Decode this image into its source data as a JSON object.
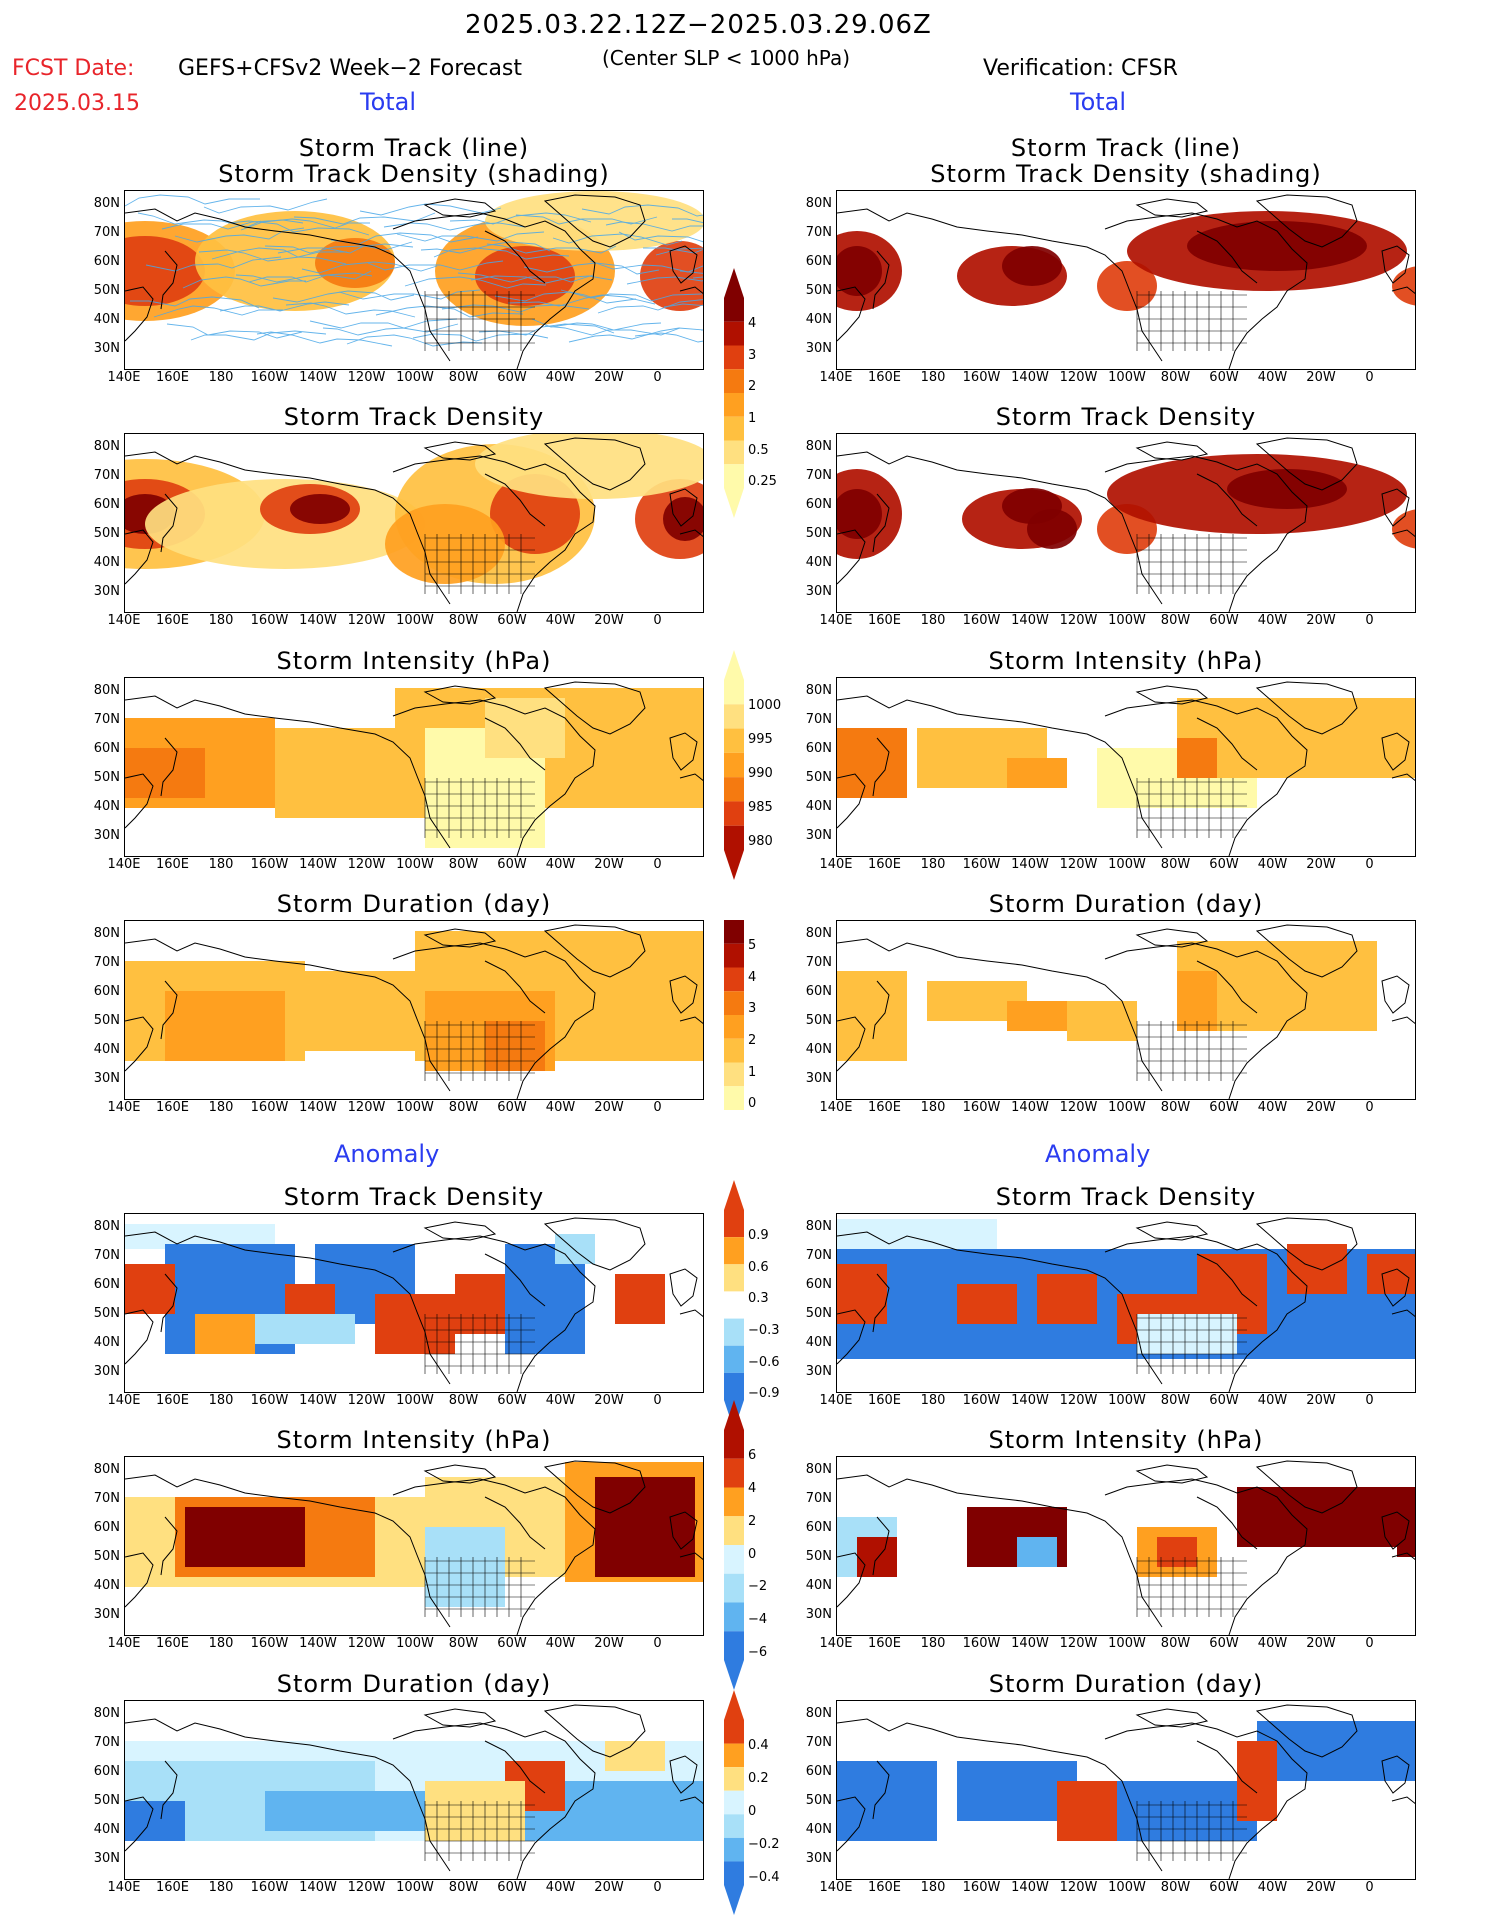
{
  "header": {
    "date_range": "2025.03.22.12Z−2025.03.29.06Z",
    "fcst_label": "FCST Date:",
    "fcst_date": "2025.03.15",
    "model_label": "GEFS+CFSv2 Week−2 Forecast",
    "threshold": "(Center SLP < 1000 hPa)",
    "verification": "Verification: CFSR"
  },
  "sections": {
    "total_left": "Total",
    "total_right": "Total",
    "anomaly_left": "Anomaly",
    "anomaly_right": "Anomaly"
  },
  "panel_titles": {
    "track_line": "Storm Track (line)",
    "track_density_shading": "Storm Track Density (shading)",
    "track_density": "Storm Track Density",
    "intensity": "Storm Intensity (hPa)",
    "duration": "Storm Duration (day)"
  },
  "axes": {
    "lat_labels": [
      "80N",
      "70N",
      "60N",
      "50N",
      "40N",
      "30N"
    ],
    "lon_labels": [
      "140E",
      "160E",
      "180",
      "160W",
      "140W",
      "120W",
      "100W",
      "80W",
      "60W",
      "40W",
      "20W",
      "0"
    ]
  },
  "colorbars": {
    "density_total": [
      "4",
      "3",
      "2",
      "1",
      "0.5",
      "0.25"
    ],
    "intensity_total": [
      "1000",
      "995",
      "990",
      "985",
      "980"
    ],
    "duration_total": [
      "5",
      "4",
      "3",
      "2",
      "1",
      "0"
    ],
    "density_anom": [
      "0.9",
      "0.6",
      "0.3",
      "−0.3",
      "−0.6",
      "−0.9"
    ],
    "intensity_anom": [
      "6",
      "4",
      "2",
      "0",
      "−2",
      "−4",
      "−6"
    ],
    "duration_anom": [
      "0.4",
      "0.2",
      "0",
      "−0.2",
      "−0.4"
    ]
  },
  "colors": {
    "warm": [
      "#fffaaa",
      "#ffe080",
      "#ffc040",
      "#ffa020",
      "#f57a10",
      "#e04010",
      "#b01000",
      "#800000"
    ],
    "cool": [
      "#d8f4ff",
      "#a8e0f8",
      "#60b4f0",
      "#2f7ce0",
      "#1c5fd0"
    ],
    "track_line": "#4aa8e8",
    "red_text": "#e8242a",
    "blue_text": "#2a3cf0"
  }
}
